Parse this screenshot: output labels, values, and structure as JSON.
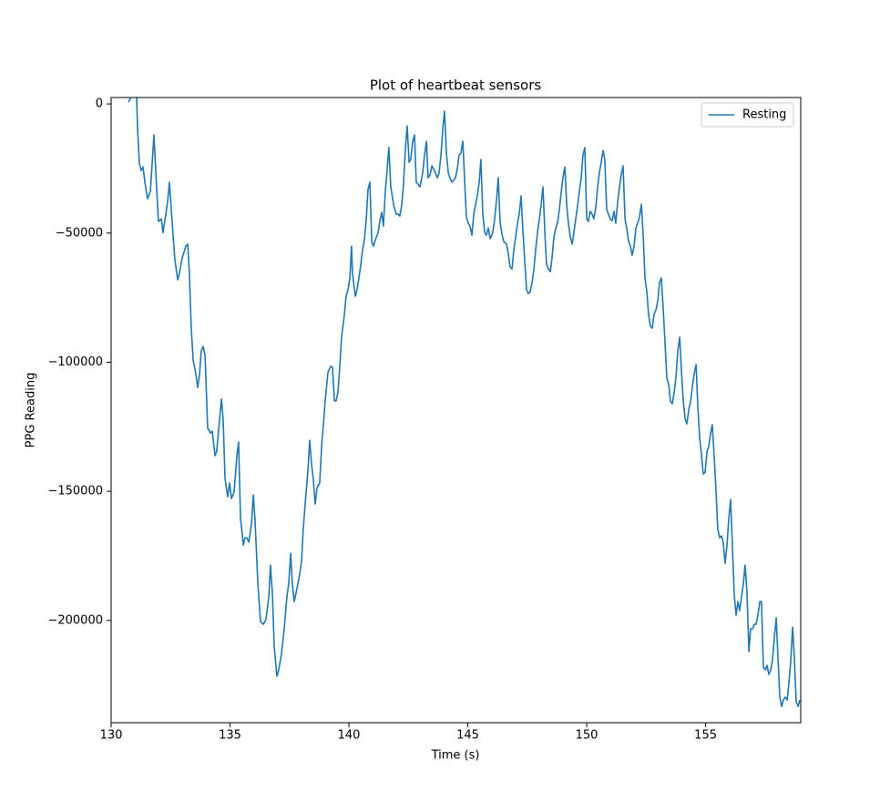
{
  "chart_data": {
    "type": "line",
    "title": "Plot of heartbeat sensors",
    "x_label": "Time (s)",
    "y_label": "PPG Reading",
    "xlim": [
      130,
      159
    ],
    "ylim": [
      -239600,
      2500
    ],
    "xticks": [
      130,
      135,
      140,
      145,
      150,
      155
    ],
    "yticks": [
      0,
      {
        "value": -50000,
        "label": "−50000"
      },
      {
        "value": -100000,
        "label": "−100000"
      },
      {
        "value": -150000,
        "label": "−150000"
      },
      {
        "value": -200000,
        "label": "−200000"
      }
    ],
    "grid": false,
    "legend": "upper right",
    "x": [
      130.73,
      130.8,
      130.88,
      131.0,
      131.07,
      131.11,
      131.19,
      131.26,
      131.34,
      131.42,
      131.53,
      131.65,
      131.8,
      131.92,
      131.99,
      132.11,
      132.18,
      132.3,
      132.38,
      132.45,
      132.53,
      132.61,
      132.68,
      132.8,
      132.87,
      132.99,
      133.14,
      133.22,
      133.29,
      133.37,
      133.45,
      133.56,
      133.64,
      133.72,
      133.79,
      133.87,
      133.95,
      134.06,
      134.18,
      134.25,
      134.37,
      134.44,
      134.56,
      134.64,
      134.71,
      134.79,
      134.9,
      134.98,
      135.06,
      135.17,
      135.29,
      135.36,
      135.44,
      135.56,
      135.63,
      135.71,
      135.79,
      135.9,
      135.98,
      136.05,
      136.17,
      136.28,
      136.4,
      136.51,
      136.63,
      136.7,
      136.78,
      136.86,
      136.97,
      137.05,
      137.16,
      137.28,
      137.39,
      137.47,
      137.55,
      137.62,
      137.7,
      137.82,
      137.93,
      138.01,
      138.08,
      138.2,
      138.28,
      138.35,
      138.43,
      138.5,
      138.58,
      138.66,
      138.77,
      138.85,
      138.93,
      139.0,
      139.12,
      139.23,
      139.31,
      139.39,
      139.46,
      139.54,
      139.62,
      139.69,
      139.81,
      139.88,
      139.96,
      140.04,
      140.11,
      140.15,
      140.27,
      140.34,
      140.42,
      140.5,
      140.57,
      140.65,
      140.73,
      140.8,
      140.88,
      140.96,
      141.03,
      141.11,
      141.23,
      141.3,
      141.38,
      141.45,
      141.53,
      141.61,
      141.68,
      141.76,
      141.88,
      141.99,
      142.07,
      142.14,
      142.22,
      142.3,
      142.37,
      142.45,
      142.53,
      142.6,
      142.68,
      142.76,
      142.83,
      142.91,
      142.99,
      143.1,
      143.18,
      143.26,
      143.33,
      143.41,
      143.49,
      143.56,
      143.64,
      143.72,
      143.79,
      143.87,
      143.95,
      144.02,
      144.1,
      144.18,
      144.25,
      144.33,
      144.4,
      144.48,
      144.56,
      144.63,
      144.71,
      144.79,
      144.86,
      144.94,
      145.02,
      145.09,
      145.17,
      145.25,
      145.32,
      145.4,
      145.48,
      145.55,
      145.63,
      145.71,
      145.78,
      145.86,
      145.94,
      146.05,
      146.13,
      146.21,
      146.28,
      146.36,
      146.44,
      146.51,
      146.63,
      146.7,
      146.78,
      146.86,
      146.93,
      147.01,
      147.09,
      147.16,
      147.24,
      147.32,
      147.39,
      147.47,
      147.55,
      147.62,
      147.7,
      147.78,
      147.85,
      147.93,
      148.01,
      148.08,
      148.16,
      148.24,
      148.31,
      148.39,
      148.47,
      148.54,
      148.62,
      148.7,
      148.77,
      148.85,
      148.93,
      149.0,
      149.08,
      149.16,
      149.23,
      149.31,
      149.39,
      149.46,
      149.54,
      149.62,
      149.69,
      149.77,
      149.84,
      149.92,
      150.0,
      150.07,
      150.15,
      150.23,
      150.3,
      150.38,
      150.46,
      150.53,
      150.61,
      150.69,
      150.76,
      150.84,
      150.92,
      150.99,
      151.07,
      151.15,
      151.22,
      151.3,
      151.38,
      151.45,
      151.53,
      151.61,
      151.68,
      151.76,
      151.84,
      151.91,
      151.99,
      152.07,
      152.14,
      152.22,
      152.3,
      152.37,
      152.45,
      152.53,
      152.6,
      152.68,
      152.76,
      152.83,
      152.91,
      152.99,
      153.06,
      153.14,
      153.22,
      153.29,
      153.37,
      153.45,
      153.52,
      153.6,
      153.68,
      153.75,
      153.83,
      153.91,
      153.98,
      154.06,
      154.14,
      154.21,
      154.29,
      154.37,
      154.44,
      154.52,
      154.6,
      154.67,
      154.75,
      154.83,
      154.9,
      154.98,
      155.06,
      155.13,
      155.21,
      155.28,
      155.36,
      155.44,
      155.51,
      155.59,
      155.67,
      155.74,
      155.82,
      155.9,
      155.97,
      156.05,
      156.13,
      156.2,
      156.28,
      156.36,
      156.43,
      156.51,
      156.59,
      156.66,
      156.74,
      156.82,
      156.89,
      156.97,
      157.05,
      157.12,
      157.2,
      157.28,
      157.35,
      157.43,
      157.51,
      157.58,
      157.66,
      157.74,
      157.81,
      157.89,
      157.97,
      158.04,
      158.12,
      158.2,
      158.27,
      158.35,
      158.43,
      158.5,
      158.58,
      158.66,
      158.73,
      158.81,
      158.89,
      158.96
    ],
    "series": [
      {
        "name": "Resting",
        "color": "#1f77b4",
        "values": [
          700,
          2100,
          3500,
          4200,
          3200,
          -9200,
          -23300,
          -25800,
          -24400,
          -30300,
          -36700,
          -33900,
          -12000,
          -33900,
          -45500,
          -44500,
          -49800,
          -42700,
          -37400,
          -30300,
          -40900,
          -51500,
          -60300,
          -68100,
          -65600,
          -59600,
          -55100,
          -54300,
          -65600,
          -86800,
          -99200,
          -104500,
          -109800,
          -104500,
          -95600,
          -93900,
          -97400,
          -125600,
          -127400,
          -126700,
          -136200,
          -134500,
          -122100,
          -114300,
          -122100,
          -145000,
          -152100,
          -146800,
          -152800,
          -150300,
          -136200,
          -130900,
          -160200,
          -170800,
          -168000,
          -168000,
          -169700,
          -162700,
          -151400,
          -160900,
          -185600,
          -200400,
          -201500,
          -199700,
          -190900,
          -178600,
          -189200,
          -210300,
          -221600,
          -219100,
          -213200,
          -203300,
          -190900,
          -185600,
          -174000,
          -185600,
          -192700,
          -187400,
          -182100,
          -176800,
          -164500,
          -150300,
          -141500,
          -130200,
          -139700,
          -145000,
          -154900,
          -148600,
          -146800,
          -132700,
          -123900,
          -115000,
          -103800,
          -101600,
          -102000,
          -115000,
          -115000,
          -111500,
          -100900,
          -90300,
          -81500,
          -74500,
          -72000,
          -67400,
          -55100,
          -65600,
          -74500,
          -72000,
          -67400,
          -62100,
          -56800,
          -52600,
          -44500,
          -33200,
          -30300,
          -53300,
          -55100,
          -52600,
          -49800,
          -45200,
          -42000,
          -47300,
          -33900,
          -25100,
          -16900,
          -32100,
          -39200,
          -42700,
          -42700,
          -43400,
          -39200,
          -30300,
          -18000,
          -8500,
          -22600,
          -21500,
          -14500,
          -12000,
          -30300,
          -31100,
          -32100,
          -26800,
          -19800,
          -14500,
          -28600,
          -27500,
          -24000,
          -25100,
          -26800,
          -28600,
          -26800,
          -19800,
          -9200,
          -2800,
          -19100,
          -26800,
          -28600,
          -30300,
          -29600,
          -28600,
          -25100,
          -19800,
          -19100,
          -14500,
          -28600,
          -43800,
          -46200,
          -47300,
          -50800,
          -42700,
          -39200,
          -35600,
          -30300,
          -21500,
          -42700,
          -49800,
          -50800,
          -48000,
          -52200,
          -49800,
          -44500,
          -36700,
          -28600,
          -46200,
          -50500,
          -53300,
          -54300,
          -57900,
          -63200,
          -63900,
          -56800,
          -51500,
          -46200,
          -42700,
          -35600,
          -49800,
          -60300,
          -72000,
          -73400,
          -72700,
          -69200,
          -63900,
          -56800,
          -49800,
          -44500,
          -39200,
          -32100,
          -49800,
          -62100,
          -63900,
          -64900,
          -59600,
          -51500,
          -48000,
          -46200,
          -40900,
          -33900,
          -28600,
          -24400,
          -39200,
          -46200,
          -51500,
          -54300,
          -49800,
          -44500,
          -39200,
          -33900,
          -28600,
          -19800,
          -16900,
          -44500,
          -45500,
          -41600,
          -42700,
          -44500,
          -40200,
          -32100,
          -26800,
          -22600,
          -18000,
          -21500,
          -40900,
          -42700,
          -44500,
          -45200,
          -41600,
          -46200,
          -38100,
          -32100,
          -27500,
          -24000,
          -44500,
          -48000,
          -53300,
          -55100,
          -58600,
          -55100,
          -48000,
          -46200,
          -43800,
          -38800,
          -49800,
          -67400,
          -72700,
          -81500,
          -86100,
          -86800,
          -81500,
          -79800,
          -76200,
          -69200,
          -67400,
          -79800,
          -92100,
          -106200,
          -108700,
          -115000,
          -116100,
          -111500,
          -106200,
          -95600,
          -90300,
          -102700,
          -115000,
          -122100,
          -123900,
          -118600,
          -115000,
          -109800,
          -104500,
          -100900,
          -116800,
          -129200,
          -136200,
          -143300,
          -142600,
          -134500,
          -132700,
          -127400,
          -124200,
          -136200,
          -150300,
          -164500,
          -168000,
          -167300,
          -169700,
          -177900,
          -170800,
          -160900,
          -153200,
          -171500,
          -189200,
          -198000,
          -192700,
          -196200,
          -190900,
          -185600,
          -178600,
          -189200,
          -212100,
          -203300,
          -203300,
          -201500,
          -201500,
          -198000,
          -192700,
          -192700,
          -218100,
          -219100,
          -217400,
          -220900,
          -219100,
          -215600,
          -206800,
          -199000,
          -213900,
          -229700,
          -233300,
          -230800,
          -229700,
          -230800,
          -224400,
          -215600,
          -202600,
          -213900,
          -231500,
          -233300,
          -230800
        ]
      }
    ]
  }
}
